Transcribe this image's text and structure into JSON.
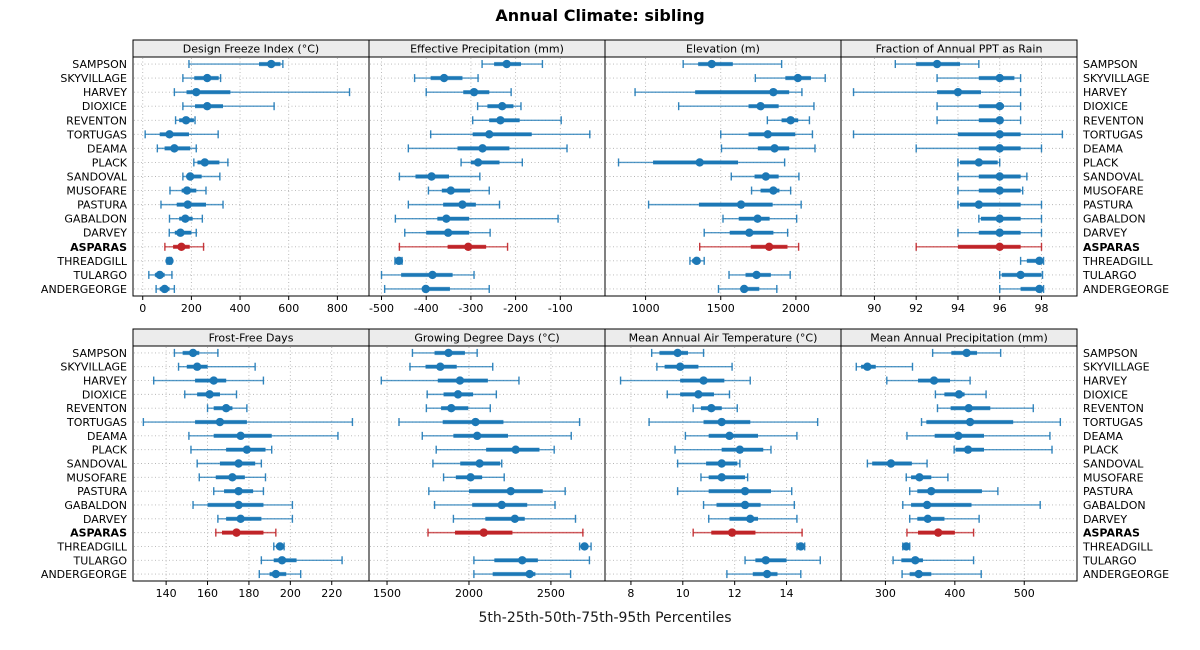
{
  "title": "Annual Climate: sibling",
  "caption": "5th-25th-50th-75th-95th Percentiles",
  "colors": {
    "series": "#1c78b6",
    "highlight": "#c02428",
    "header_bg": "#ececec",
    "panel_border": "#000000",
    "grid": "#b5b5b5",
    "text": "#000000"
  },
  "highlight_station": "ASPARAS",
  "stations": [
    "SAMPSON",
    "SKYVILLAGE",
    "HARVEY",
    "DIOXICE",
    "REVENTON",
    "TORTUGAS",
    "DEAMA",
    "PLACK",
    "SANDOVAL",
    "MUSOFARE",
    "PASTURA",
    "GABALDON",
    "DARVEY",
    "ASPARAS",
    "THREADGILL",
    "TULARGO",
    "ANDERGEORGE"
  ],
  "chart_data": {
    "type": "percentile-dotplot-trellis",
    "percentile_labels": [
      "5th",
      "25th",
      "50th",
      "75th",
      "95th"
    ],
    "grid": "dotted",
    "panels": [
      {
        "title": "Design Freeze Index (°C)",
        "row": 0,
        "col": 0,
        "ticks": [
          0,
          200,
          400,
          600,
          800
        ],
        "xlim": [
          -40,
          930
        ],
        "values": [
          [
            190,
            478,
            528,
            566,
            576
          ],
          [
            165,
            212,
            265,
            312,
            320
          ],
          [
            130,
            180,
            220,
            360,
            850
          ],
          [
            165,
            215,
            265,
            330,
            540
          ],
          [
            135,
            150,
            178,
            210,
            215
          ],
          [
            10,
            70,
            110,
            190,
            310
          ],
          [
            60,
            90,
            130,
            195,
            220
          ],
          [
            210,
            225,
            255,
            315,
            350
          ],
          [
            165,
            182,
            195,
            242,
            317
          ],
          [
            112,
            160,
            182,
            220,
            260
          ],
          [
            75,
            140,
            185,
            260,
            330
          ],
          [
            110,
            150,
            175,
            205,
            245
          ],
          [
            109,
            132,
            155,
            200,
            220
          ],
          [
            91,
            125,
            159,
            193,
            250
          ],
          [
            100,
            105,
            110,
            115,
            118
          ],
          [
            25,
            50,
            70,
            90,
            120
          ],
          [
            55,
            70,
            90,
            110,
            130
          ]
        ]
      },
      {
        "title": "Effective Precipitation (mm)",
        "row": 0,
        "col": 1,
        "ticks": [
          -500,
          -400,
          -300,
          -200,
          -100
        ],
        "xlim": [
          -528,
          0
        ],
        "values": [
          [
            -275,
            -248,
            -220,
            -188,
            -140
          ],
          [
            -426,
            -390,
            -360,
            -319,
            -284
          ],
          [
            -400,
            -317,
            -293,
            -259,
            -210
          ],
          [
            -285,
            -263,
            -230,
            -205,
            -188
          ],
          [
            -296,
            -259,
            -234,
            -191,
            -98
          ],
          [
            -390,
            -296,
            -259,
            -164,
            -34
          ],
          [
            -440,
            -330,
            -274,
            -214,
            -85
          ],
          [
            -322,
            -300,
            -284,
            -236,
            -185
          ],
          [
            -460,
            -424,
            -388,
            -349,
            -280
          ],
          [
            -395,
            -365,
            -345,
            -302,
            -259
          ],
          [
            -440,
            -362,
            -319,
            -289,
            -236
          ],
          [
            -469,
            -375,
            -355,
            -304,
            -105
          ],
          [
            -448,
            -400,
            -351,
            -304,
            -257
          ],
          [
            -460,
            -352,
            -306,
            -266,
            -218
          ],
          [
            -470,
            -466,
            -461,
            -457,
            -454
          ],
          [
            -500,
            -456,
            -386,
            -341,
            -293
          ],
          [
            -493,
            -406,
            -401,
            -347,
            -259
          ]
        ]
      },
      {
        "title": "Elevation (m)",
        "row": 0,
        "col": 2,
        "ticks": [
          1000,
          1500,
          2000
        ],
        "xlim": [
          730,
          2300
        ],
        "values": [
          [
            1250,
            1350,
            1440,
            1580,
            1905
          ],
          [
            1730,
            1930,
            2013,
            2100,
            2195
          ],
          [
            930,
            1330,
            1850,
            1955,
            2040
          ],
          [
            1220,
            1685,
            1765,
            1885,
            2120
          ],
          [
            1810,
            1905,
            1965,
            2015,
            2090
          ],
          [
            1500,
            1685,
            1813,
            1995,
            2110
          ],
          [
            1505,
            1747,
            1858,
            1955,
            2127
          ],
          [
            820,
            1050,
            1360,
            1615,
            1925
          ],
          [
            1570,
            1725,
            1800,
            1885,
            2020
          ],
          [
            1705,
            1765,
            1850,
            1890,
            1965
          ],
          [
            1020,
            1355,
            1635,
            1845,
            2035
          ],
          [
            1515,
            1620,
            1745,
            1825,
            2005
          ],
          [
            1390,
            1560,
            1690,
            1850,
            1945
          ],
          [
            1360,
            1700,
            1822,
            1944,
            2018
          ],
          [
            1295,
            1310,
            1340,
            1365,
            1390
          ],
          [
            1555,
            1665,
            1738,
            1833,
            1962
          ],
          [
            1485,
            1633,
            1656,
            1756,
            1873
          ]
        ]
      },
      {
        "title": "Fraction of Annual PPT as Rain",
        "row": 0,
        "col": 3,
        "ticks": [
          90,
          92,
          94,
          96,
          98
        ],
        "xlim": [
          88.4,
          99.7
        ],
        "values": [
          [
            91,
            92,
            93,
            94.1,
            95
          ],
          [
            93,
            95,
            96,
            96.7,
            97
          ],
          [
            89,
            93,
            94,
            95.1,
            97
          ],
          [
            93,
            95,
            96,
            96.2,
            97
          ],
          [
            93,
            95,
            96,
            96.1,
            97
          ],
          [
            89,
            94,
            96,
            97,
            99
          ],
          [
            92,
            95,
            96,
            97,
            98
          ],
          [
            94,
            94.1,
            95,
            95.9,
            96
          ],
          [
            94,
            95,
            96,
            97,
            97.3
          ],
          [
            94,
            95,
            96,
            97,
            97.1
          ],
          [
            94,
            94.1,
            95,
            97,
            98
          ],
          [
            95,
            95.1,
            96,
            97,
            98
          ],
          [
            94,
            95,
            96,
            97,
            98
          ],
          [
            92,
            94,
            96,
            97,
            98
          ],
          [
            97,
            97.3,
            97.9,
            98,
            98.1
          ],
          [
            96,
            96.1,
            97,
            98,
            98.05
          ],
          [
            96,
            97,
            97.9,
            98,
            98.1
          ]
        ]
      },
      {
        "title": "Frost-Free Days",
        "row": 1,
        "col": 0,
        "ticks": [
          140,
          160,
          180,
          200,
          220
        ],
        "xlim": [
          124,
          238
        ],
        "values": [
          [
            144,
            148,
            153,
            156,
            165
          ],
          [
            146,
            150,
            155,
            160,
            183
          ],
          [
            134,
            154,
            163,
            169,
            187
          ],
          [
            149,
            155,
            161,
            166,
            174
          ],
          [
            160,
            163,
            169,
            172,
            179
          ],
          [
            129,
            154,
            166,
            179,
            230
          ],
          [
            151,
            163,
            176,
            191,
            223
          ],
          [
            152,
            169,
            179,
            188,
            191
          ],
          [
            155,
            166,
            175,
            183,
            186
          ],
          [
            156,
            164,
            172,
            178,
            188
          ],
          [
            163,
            168,
            175,
            182,
            187
          ],
          [
            153,
            160,
            175,
            187,
            201
          ],
          [
            165,
            169,
            176,
            186,
            201
          ],
          [
            164,
            167,
            174,
            187,
            193
          ],
          [
            192,
            194,
            195,
            196,
            197
          ],
          [
            186,
            192,
            196,
            203,
            225
          ],
          [
            185,
            190,
            193,
            198,
            205
          ]
        ]
      },
      {
        "title": "Growing Degree Days (°C)",
        "row": 1,
        "col": 1,
        "ticks": [
          1500,
          2000,
          2500
        ],
        "xlim": [
          1390,
          2830
        ],
        "values": [
          [
            1655,
            1790,
            1875,
            1975,
            2050
          ],
          [
            1640,
            1735,
            1825,
            1925,
            2145
          ],
          [
            1465,
            1810,
            1945,
            2115,
            2305
          ],
          [
            1745,
            1845,
            1933,
            2025,
            2167
          ],
          [
            1740,
            1830,
            1892,
            1995,
            2130
          ],
          [
            1573,
            1840,
            2040,
            2210,
            2675
          ],
          [
            1715,
            1905,
            2050,
            2238,
            2624
          ],
          [
            1800,
            2105,
            2285,
            2430,
            2520
          ],
          [
            1780,
            1947,
            2065,
            2190,
            2200
          ],
          [
            1845,
            1920,
            2010,
            2080,
            2215
          ],
          [
            1755,
            2000,
            2255,
            2450,
            2587
          ],
          [
            1790,
            2020,
            2200,
            2355,
            2525
          ],
          [
            1905,
            2100,
            2280,
            2340,
            2650
          ],
          [
            1750,
            1915,
            2090,
            2265,
            2695
          ],
          [
            2675,
            2690,
            2705,
            2725,
            2745
          ],
          [
            2030,
            2155,
            2325,
            2420,
            2735
          ],
          [
            2030,
            2145,
            2370,
            2405,
            2620
          ]
        ]
      },
      {
        "title": "Mean Annual Air Temperature (°C)",
        "row": 1,
        "col": 2,
        "ticks": [
          8,
          10,
          12,
          14
        ],
        "xlim": [
          7.0,
          16.1
        ],
        "values": [
          [
            8.8,
            9.1,
            9.8,
            10.2,
            10.8
          ],
          [
            9.0,
            9.3,
            9.9,
            10.6,
            11.9
          ],
          [
            7.6,
            9.9,
            10.8,
            11.6,
            12.6
          ],
          [
            9.4,
            9.9,
            10.6,
            11.2,
            11.8
          ],
          [
            10.4,
            10.7,
            11.1,
            11.5,
            12.1
          ],
          [
            8.7,
            10.8,
            11.5,
            12.6,
            15.2
          ],
          [
            10.1,
            11.0,
            11.8,
            12.9,
            14.4
          ],
          [
            9.7,
            11.5,
            12.2,
            13.1,
            13.4
          ],
          [
            9.8,
            10.9,
            11.5,
            12.1,
            12.2
          ],
          [
            10.7,
            11.0,
            11.5,
            12.4,
            12.5
          ],
          [
            9.8,
            11.0,
            12.4,
            13.4,
            14.2
          ],
          [
            10.8,
            11.3,
            12.4,
            13.0,
            14.3
          ],
          [
            11.0,
            11.8,
            12.6,
            12.9,
            14.4
          ],
          [
            10.4,
            11.1,
            11.9,
            12.8,
            14.6
          ],
          [
            14.4,
            14.5,
            14.55,
            14.65,
            14.7
          ],
          [
            12.4,
            12.8,
            13.2,
            14.0,
            15.3
          ],
          [
            11.7,
            12.7,
            13.25,
            13.65,
            14.55
          ]
        ]
      },
      {
        "title": "Mean Annual Precipitation (mm)",
        "row": 1,
        "col": 3,
        "ticks": [
          300,
          400,
          500
        ],
        "xlim": [
          236,
          576
        ],
        "values": [
          [
            368,
            395,
            417,
            432,
            466
          ],
          [
            258,
            265,
            274,
            286,
            339
          ],
          [
            302,
            347,
            370,
            393,
            422
          ],
          [
            372,
            385,
            406,
            414,
            445
          ],
          [
            375,
            394,
            420,
            451,
            513
          ],
          [
            352,
            359,
            422,
            484,
            552
          ],
          [
            331,
            371,
            405,
            442,
            537
          ],
          [
            399,
            401,
            419,
            442,
            540
          ],
          [
            274,
            281,
            308,
            338,
            360
          ],
          [
            330,
            337,
            349,
            366,
            390
          ],
          [
            335,
            346,
            366,
            439,
            462
          ],
          [
            325,
            337,
            360,
            424,
            523
          ],
          [
            335,
            346,
            361,
            385,
            435
          ],
          [
            331,
            347,
            376,
            400,
            427
          ],
          [
            325,
            327,
            330,
            333,
            335
          ],
          [
            311,
            323,
            343,
            354,
            427
          ],
          [
            324,
            335,
            348,
            366,
            438
          ]
        ]
      }
    ]
  }
}
